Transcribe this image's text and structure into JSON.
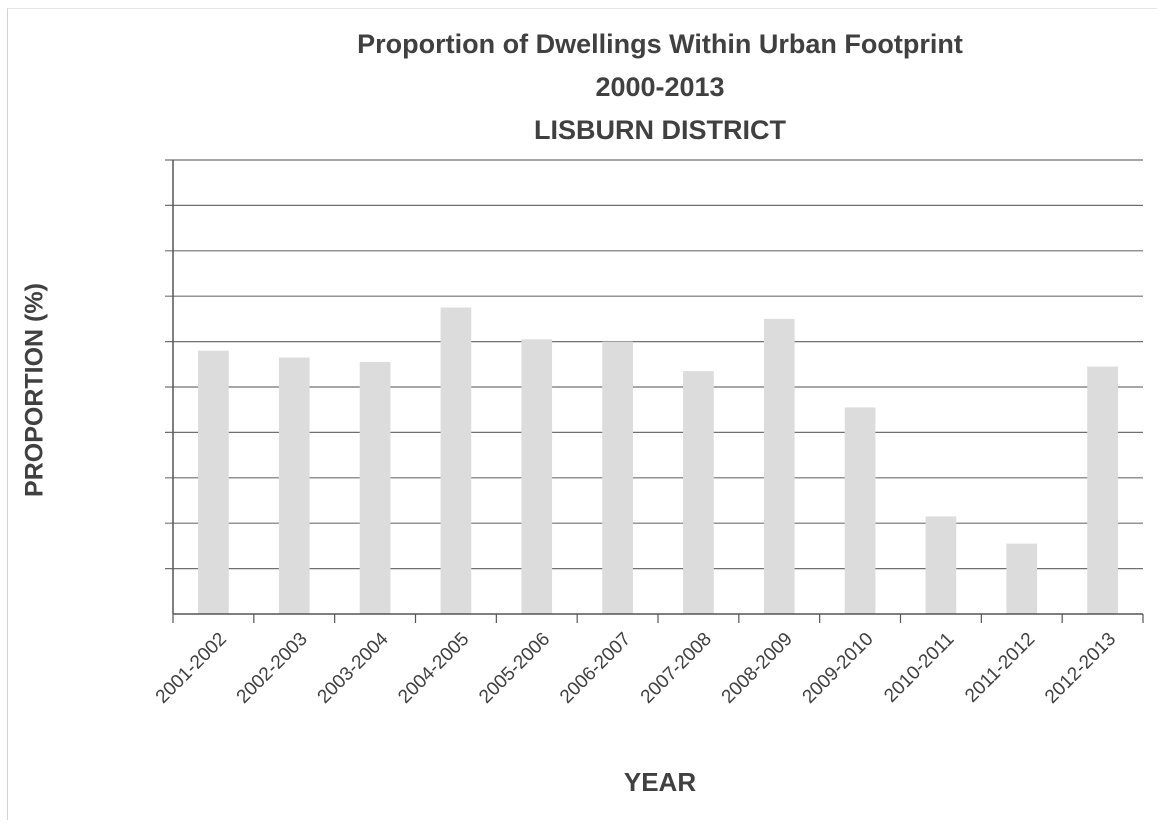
{
  "chart_data": {
    "type": "bar",
    "title": "Proportion of Dwellings Within Urban Footprint",
    "subtitle_lines": [
      "2000-2013",
      "LISBURN DISTRICT"
    ],
    "xlabel": "YEAR",
    "ylabel": "PROPORTION (%)",
    "categories": [
      "2001-2002",
      "2002-2003",
      "2003-2004",
      "2004-2005",
      "2005-2006",
      "2006-2007",
      "2007-2008",
      "2008-2009",
      "2009-2010",
      "2010-2011",
      "2011-2012",
      "2012-2013"
    ],
    "values": [
      5.8,
      5.65,
      5.55,
      6.75,
      6.05,
      6.0,
      5.35,
      6.5,
      4.55,
      2.15,
      1.55,
      5.45
    ],
    "ylim": [
      0,
      10
    ],
    "y_gridlines": 10,
    "y_tick_labels_visible": false,
    "grid": true,
    "bar_color": "#dcdcdc",
    "grid_color": "#707070"
  }
}
